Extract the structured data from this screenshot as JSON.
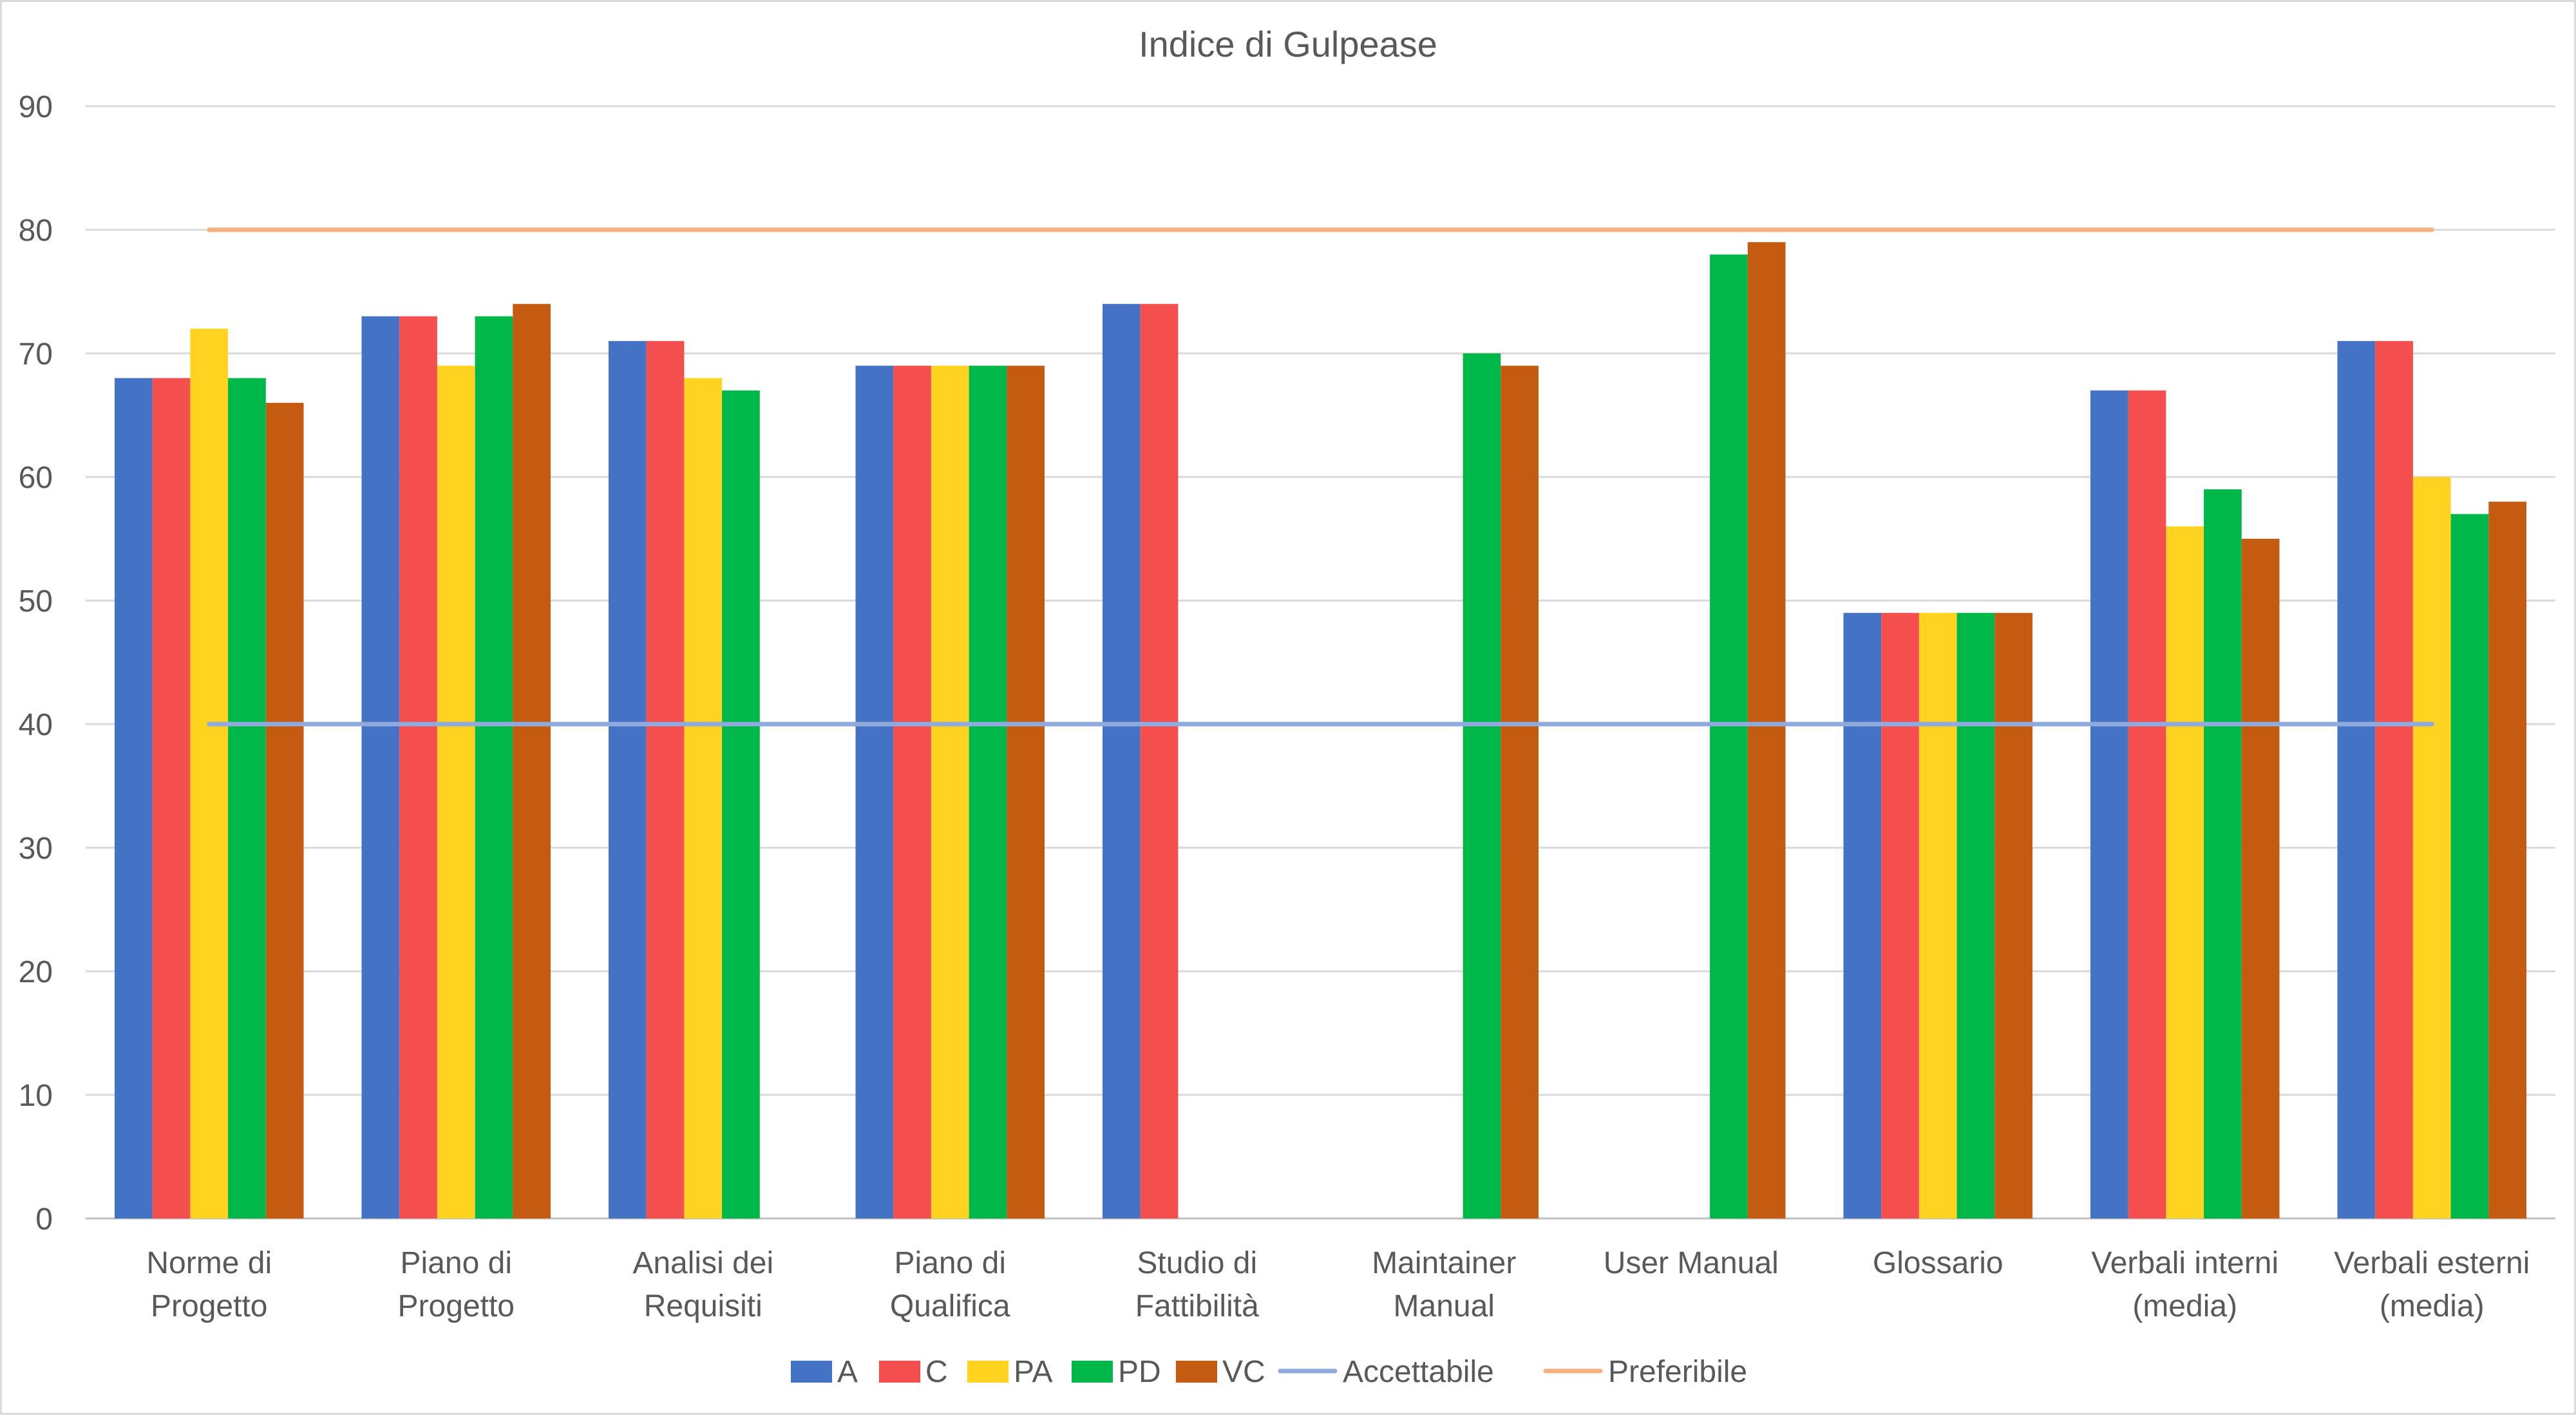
{
  "chart_data": {
    "type": "bar",
    "title": "Indice di Gulpease",
    "xlabel": "",
    "ylabel": "",
    "ylim": [
      0,
      90
    ],
    "yticks": [
      0,
      10,
      20,
      30,
      40,
      50,
      60,
      70,
      80,
      90
    ],
    "grid": true,
    "legend_position": "bottom",
    "categories": [
      [
        "Norme di",
        "Progetto"
      ],
      [
        "Piano di",
        "Progetto"
      ],
      [
        "Analisi dei",
        "Requisiti"
      ],
      [
        "Piano di",
        "Qualifica"
      ],
      [
        "Studio di",
        "Fattibilità"
      ],
      [
        "Maintainer",
        "Manual"
      ],
      [
        "User Manual"
      ],
      [
        "Glossario"
      ],
      [
        "Verbali interni",
        "(media)"
      ],
      [
        "Verbali esterni",
        "(media)"
      ]
    ],
    "series": [
      {
        "name": "A",
        "color": "#4472C4",
        "values": [
          68,
          73,
          71,
          69,
          74,
          null,
          null,
          49,
          67,
          71
        ]
      },
      {
        "name": "C",
        "color": "#F44E4E",
        "values": [
          68,
          73,
          71,
          69,
          74,
          null,
          null,
          49,
          67,
          71
        ]
      },
      {
        "name": "PA",
        "color": "#FFD320",
        "values": [
          72,
          69,
          68,
          69,
          null,
          null,
          null,
          49,
          56,
          60
        ]
      },
      {
        "name": "PD",
        "color": "#00B84A",
        "values": [
          68,
          73,
          67,
          69,
          null,
          70,
          78,
          49,
          59,
          57
        ]
      },
      {
        "name": "VC",
        "color": "#C55A11",
        "values": [
          66,
          74,
          null,
          69,
          null,
          69,
          79,
          49,
          55,
          58
        ]
      }
    ],
    "reference_lines": [
      {
        "name": "Accettabile",
        "color": "#8FAADC",
        "value": 40
      },
      {
        "name": "Preferibile",
        "color": "#F4B183",
        "value": 80
      }
    ]
  }
}
